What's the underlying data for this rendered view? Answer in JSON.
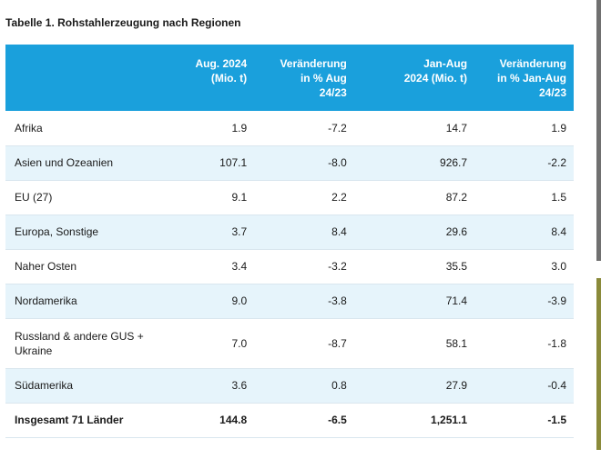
{
  "title": "Tabelle 1. Rohstahlerzeugung nach Regionen",
  "header": {
    "col_a": [
      "Aug. 2024",
      "(Mio. t)"
    ],
    "col_b": [
      "Veränderung",
      "in % Aug",
      "24/23"
    ],
    "col_c": [
      "Jan-Aug",
      "2024 (Mio. t)"
    ],
    "col_d": [
      "Veränderung",
      "in % Jan-Aug",
      "24/23"
    ]
  },
  "rows": [
    {
      "region": "Afrika",
      "aug_2024": "1.9",
      "change_aug": "-7.2",
      "jan_aug_2024": "14.7",
      "change_jan_aug": "1.9"
    },
    {
      "region": "Asien und Ozeanien",
      "aug_2024": "107.1",
      "change_aug": "-8.0",
      "jan_aug_2024": "926.7",
      "change_jan_aug": "-2.2"
    },
    {
      "region": "EU (27)",
      "aug_2024": "9.1",
      "change_aug": "2.2",
      "jan_aug_2024": "87.2",
      "change_jan_aug": "1.5"
    },
    {
      "region": "Europa, Sonstige",
      "aug_2024": "3.7",
      "change_aug": "8.4",
      "jan_aug_2024": "29.6",
      "change_jan_aug": "8.4"
    },
    {
      "region": "Naher Osten",
      "aug_2024": "3.4",
      "change_aug": "-3.2",
      "jan_aug_2024": "35.5",
      "change_jan_aug": "3.0"
    },
    {
      "region": "Nordamerika",
      "aug_2024": "9.0",
      "change_aug": "-3.8",
      "jan_aug_2024": "71.4",
      "change_jan_aug": "-3.9"
    },
    {
      "region": "Russland & andere GUS + Ukraine",
      "aug_2024": "7.0",
      "change_aug": "-8.7",
      "jan_aug_2024": "58.1",
      "change_jan_aug": "-1.8"
    },
    {
      "region": "Südamerika",
      "aug_2024": "3.6",
      "change_aug": "0.8",
      "jan_aug_2024": "27.9",
      "change_jan_aug": "-0.4"
    }
  ],
  "total": {
    "region": "Insgesamt 71 Länder",
    "aug_2024": "144.8",
    "change_aug": "-6.5",
    "jan_aug_2024": "1,251.1",
    "change_jan_aug": "-1.5"
  },
  "colors": {
    "header_bg": "#1aa0dc",
    "alt_row_bg": "#e6f4fb"
  }
}
